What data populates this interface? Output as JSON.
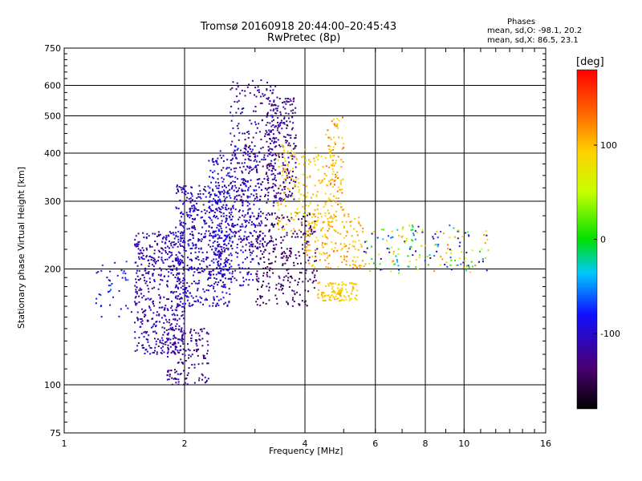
{
  "header": {
    "title_line1": "Tromsø 20160918 20:44:00–20:45:43",
    "title_line2": "RwPretec (8p)",
    "stats_title": "Phases",
    "stats_o": "mean, sd,O: -98.1, 20.2",
    "stats_x": "mean, sd,X: 86.5, 23.1"
  },
  "colorbar": {
    "label": "[deg]",
    "ticks": [
      "100",
      "0",
      "-100"
    ],
    "tick_values": [
      100,
      0,
      -100
    ],
    "range": [
      -180,
      180
    ]
  },
  "chart_data": {
    "type": "scatter",
    "xlabel": "Frequency [MHz]",
    "ylabel": "Stationary phase Virtual Height [km]",
    "x_scale": "log",
    "y_scale": "log",
    "xlim": [
      1,
      16
    ],
    "ylim": [
      75,
      750
    ],
    "x_ticks": [
      "1",
      "2",
      "4",
      "6",
      "8",
      "10",
      "16"
    ],
    "x_tick_values": [
      1,
      2,
      4,
      6,
      8,
      10,
      16
    ],
    "y_ticks": [
      "75",
      "100",
      "200",
      "300",
      "400",
      "500",
      "600",
      "750"
    ],
    "y_tick_values": [
      75,
      100,
      200,
      300,
      400,
      500,
      600,
      750
    ],
    "grid_x": [
      2,
      4,
      6,
      8,
      10
    ],
    "grid_y": [
      100,
      200,
      300,
      400,
      500,
      600
    ],
    "clusters": [
      {
        "f": [
          1.5,
          2.0
        ],
        "h": [
          120,
          250
        ],
        "n": 500,
        "phase": [
          -135,
          -90
        ]
      },
      {
        "f": [
          1.9,
          2.6
        ],
        "h": [
          160,
          330
        ],
        "n": 520,
        "phase": [
          -130,
          -80
        ]
      },
      {
        "f": [
          2.3,
          3.1
        ],
        "h": [
          180,
          420
        ],
        "n": 420,
        "phase": [
          -135,
          -70
        ]
      },
      {
        "f": [
          2.6,
          3.4
        ],
        "h": [
          220,
          620
        ],
        "n": 320,
        "phase": [
          -140,
          -95
        ]
      },
      {
        "f": [
          3.2,
          3.8
        ],
        "h": [
          300,
          560
        ],
        "n": 240,
        "phase": [
          -150,
          -100
        ]
      },
      {
        "f": [
          1.8,
          2.3
        ],
        "h": [
          100,
          140
        ],
        "n": 150,
        "phase": [
          -140,
          -110
        ]
      },
      {
        "f": [
          3.0,
          4.3
        ],
        "h": [
          160,
          280
        ],
        "n": 260,
        "phase": [
          -165,
          -120
        ]
      },
      {
        "f": [
          3.4,
          4.8
        ],
        "h": [
          250,
          420
        ],
        "n": 200,
        "phase": [
          70,
          120
        ]
      },
      {
        "f": [
          4.3,
          5.4
        ],
        "h": [
          165,
          185
        ],
        "n": 110,
        "phase": [
          75,
          115
        ]
      },
      {
        "f": [
          4.0,
          5.6
        ],
        "h": [
          200,
          280
        ],
        "n": 160,
        "phase": [
          80,
          130
        ]
      },
      {
        "f": [
          5.6,
          7.8
        ],
        "h": [
          195,
          260
        ],
        "n": 90,
        "phase": [
          -140,
          120
        ]
      },
      {
        "f": [
          7.8,
          11.5
        ],
        "h": [
          195,
          260
        ],
        "n": 90,
        "phase": [
          -150,
          130
        ]
      },
      {
        "f": [
          4.5,
          5.0
        ],
        "h": [
          280,
          500
        ],
        "n": 80,
        "phase": [
          80,
          140
        ]
      },
      {
        "f": [
          1.2,
          1.5
        ],
        "h": [
          150,
          210
        ],
        "n": 40,
        "phase": [
          -120,
          -60
        ]
      }
    ]
  }
}
